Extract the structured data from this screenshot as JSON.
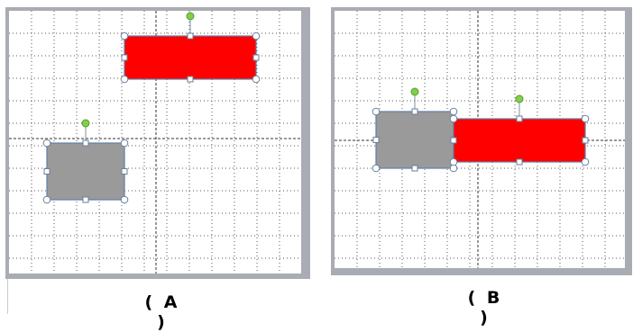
{
  "panels": [
    {
      "id": "A",
      "caption": "( A )",
      "shapes": [
        {
          "name": "red-rectangle",
          "color": "#ff0000"
        },
        {
          "name": "gray-rectangle",
          "color": "#9a9a9a"
        }
      ]
    },
    {
      "id": "B",
      "caption": "( B )",
      "shapes": [
        {
          "name": "gray-rectangle",
          "color": "#9a9a9a"
        },
        {
          "name": "red-rectangle",
          "color": "#ff0000"
        }
      ]
    }
  ],
  "colors": {
    "canvas": "#ffffff",
    "frame": "#a9acb3",
    "grid": "#5a5a5a",
    "shape_border": "#5f7fa5",
    "handle_fill": "#ffffff",
    "rotation_handle": "#7fd04a"
  }
}
